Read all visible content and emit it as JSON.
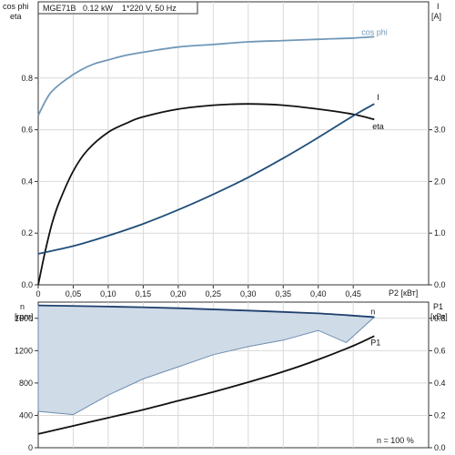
{
  "chart_data": [
    {
      "type": "line",
      "title": "MGE71B   0.12 kW    1*220 V, 50 Hz",
      "xlabel": "P2 [кВт]",
      "ylabel_left": "cos phi\neta",
      "ylabel_right_top": "I",
      "ylabel_right_unit": "[A]",
      "xlim": [
        0,
        0.5
      ],
      "ylim_left": [
        0,
        1.0
      ],
      "ylim_right": [
        0,
        5.0
      ],
      "x_ticks": [
        0,
        0.05,
        0.1,
        0.15,
        0.2,
        0.25,
        0.3,
        0.35,
        0.4,
        0.45
      ],
      "x_tick_labels": [
        "0",
        "0,05",
        "0,10",
        "0,15",
        "0,20",
        "0,25",
        "0,30",
        "0,35",
        "0,40",
        "0,45"
      ],
      "y_left_ticks": [
        0,
        0.2,
        0.4,
        0.6,
        0.8
      ],
      "y_left_tick_labels": [
        "0.0",
        "0.2",
        "0.4",
        "0.6",
        "0.8"
      ],
      "y_right_ticks": [
        0,
        1,
        2,
        3,
        4
      ],
      "y_right_tick_labels": [
        "0.0",
        "1.0",
        "2.0",
        "3.0",
        "4.0"
      ],
      "grid": true,
      "series": [
        {
          "name": "cos phi",
          "axis": "left",
          "color": "#7198b8",
          "x": [
            0,
            0.01,
            0.02,
            0.04,
            0.06,
            0.08,
            0.1,
            0.12,
            0.15,
            0.2,
            0.25,
            0.3,
            0.35,
            0.4,
            0.45,
            0.48
          ],
          "values": [
            0.655,
            0.71,
            0.75,
            0.795,
            0.83,
            0.855,
            0.87,
            0.885,
            0.9,
            0.92,
            0.93,
            0.94,
            0.945,
            0.95,
            0.955,
            0.96
          ]
        },
        {
          "name": "eta",
          "axis": "left",
          "color": "#111111",
          "x": [
            0,
            0.01,
            0.02,
            0.03,
            0.05,
            0.07,
            0.1,
            0.13,
            0.15,
            0.2,
            0.25,
            0.3,
            0.35,
            0.4,
            0.45,
            0.48
          ],
          "values": [
            0.0,
            0.13,
            0.24,
            0.32,
            0.44,
            0.52,
            0.59,
            0.63,
            0.65,
            0.68,
            0.695,
            0.7,
            0.695,
            0.68,
            0.66,
            0.64
          ]
        },
        {
          "name": "I",
          "axis": "right",
          "color": "#1f4e79",
          "x": [
            0,
            0.05,
            0.1,
            0.15,
            0.2,
            0.25,
            0.3,
            0.35,
            0.4,
            0.45,
            0.48
          ],
          "values": [
            0.6,
            0.75,
            0.95,
            1.18,
            1.45,
            1.75,
            2.08,
            2.45,
            2.85,
            3.27,
            3.5
          ]
        }
      ]
    },
    {
      "type": "area",
      "xlim": [
        0,
        0.5
      ],
      "ylim_left": [
        0,
        1800
      ],
      "ylim_right": [
        0,
        0.9
      ],
      "ylabel_left": "n",
      "ylabel_left_unit": "[rpm]",
      "ylabel_right": "P1",
      "ylabel_right_unit": "[кВт]",
      "y_left_ticks": [
        0,
        400,
        800,
        1200,
        1600
      ],
      "y_left_tick_labels": [
        "0",
        "400",
        "800",
        "1200",
        "1600"
      ],
      "y_right_ticks": [
        0,
        0.2,
        0.4,
        0.6,
        0.8
      ],
      "y_right_tick_labels": [
        "0.0",
        "0.2",
        "0.4",
        "0.6",
        "0.8"
      ],
      "annotation": "n = 100 %",
      "grid": true,
      "series": [
        {
          "name": "n",
          "axis": "left",
          "color": "#1f3f6e",
          "x": [
            0,
            0.1,
            0.2,
            0.3,
            0.4,
            0.48
          ],
          "values": [
            1760,
            1745,
            1725,
            1695,
            1660,
            1615
          ]
        },
        {
          "name": "P1",
          "axis": "right",
          "color": "#111111",
          "x": [
            0,
            0.05,
            0.1,
            0.15,
            0.2,
            0.25,
            0.3,
            0.35,
            0.4,
            0.45,
            0.48
          ],
          "values": [
            0.085,
            0.135,
            0.185,
            0.235,
            0.29,
            0.345,
            0.405,
            0.47,
            0.545,
            0.63,
            0.69
          ]
        }
      ],
      "operating_range": {
        "fill": "#cfdbe7",
        "edge": "#6e8db0",
        "x": [
          0,
          0.1,
          0.2,
          0.3,
          0.4,
          0.48,
          0.44,
          0.4,
          0.35,
          0.3,
          0.25,
          0.2,
          0.15,
          0.1,
          0.05,
          0
        ],
        "values": [
          1760,
          1745,
          1725,
          1695,
          1660,
          1615,
          1300,
          1450,
          1330,
          1250,
          1150,
          1000,
          850,
          650,
          410,
          450
        ]
      }
    }
  ]
}
